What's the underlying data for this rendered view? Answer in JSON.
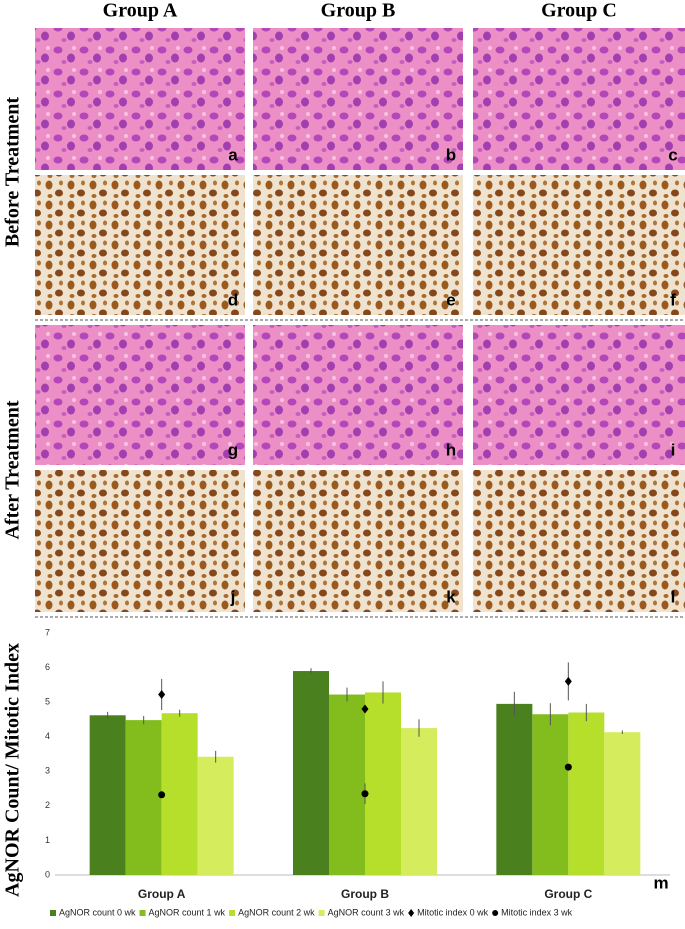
{
  "column_headers": [
    "Group A",
    "Group B",
    "Group C"
  ],
  "row_labels": [
    "Before Treatment",
    "After Treatment"
  ],
  "panel_labels": [
    "a",
    "b",
    "c",
    "d",
    "e",
    "f",
    "g",
    "h",
    "i",
    "j",
    "k",
    "l"
  ],
  "chart_data": {
    "type": "bar",
    "panel_label": "m",
    "ylabel": "AgNOR Count/ Mitotic Index",
    "categories": [
      "Group A",
      "Group B",
      "Group C"
    ],
    "ylim": [
      0,
      7
    ],
    "yticks": [
      0,
      1,
      2,
      3,
      4,
      5,
      6,
      7
    ],
    "series": [
      {
        "name": "AgNOR count 0 wk",
        "color": "#4b801f",
        "values": [
          4.62,
          5.9,
          4.95
        ],
        "errors": [
          0.1,
          0.08,
          0.35
        ]
      },
      {
        "name": "AgNOR count 1  wk",
        "color": "#83bd1d",
        "values": [
          4.48,
          5.22,
          4.65
        ],
        "errors": [
          0.12,
          0.2,
          0.32
        ]
      },
      {
        "name": "AgNOR count 2  wk",
        "color": "#b5df2b",
        "values": [
          4.68,
          5.28,
          4.7
        ],
        "errors": [
          0.1,
          0.32,
          0.25
        ]
      },
      {
        "name": "AgNOR count 3  wk",
        "color": "#d5ed5c",
        "values": [
          3.42,
          4.25,
          4.13
        ],
        "errors": [
          0.17,
          0.25,
          0.05
        ]
      },
      {
        "name": "Mitotic index 0  wk",
        "color": "#000000",
        "marker": "diamond",
        "values": [
          5.22,
          4.8,
          5.6
        ],
        "errors": [
          0.45,
          0.02,
          0.55
        ]
      },
      {
        "name": "Mitotic index 3  wk",
        "color": "#000000",
        "marker": "circle",
        "values": [
          2.32,
          2.35,
          3.12
        ],
        "errors": [
          0.05,
          0.3,
          0.03
        ]
      }
    ]
  }
}
